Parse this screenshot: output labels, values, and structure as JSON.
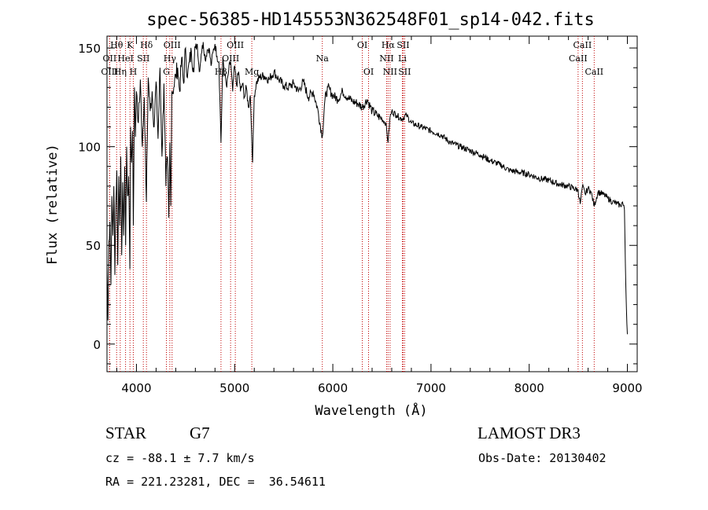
{
  "chart_data": {
    "type": "line",
    "title": "spec-56385-HD145553N362548F01_sp14-042.fits",
    "xlabel": "Wavelength (Å)",
    "ylabel": "Flux (relative)",
    "xlim": [
      3700,
      9100
    ],
    "ylim": [
      -14,
      156
    ],
    "xticks": [
      4000,
      5000,
      6000,
      7000,
      8000,
      9000
    ],
    "yticks": [
      0,
      50,
      100,
      150
    ],
    "series": [
      {
        "name": "flux",
        "x": [
          3700,
          3710,
          3720,
          3730,
          3740,
          3750,
          3760,
          3770,
          3780,
          3790,
          3800,
          3810,
          3820,
          3830,
          3840,
          3850,
          3860,
          3870,
          3880,
          3890,
          3900,
          3910,
          3920,
          3933,
          3940,
          3950,
          3960,
          3968,
          3980,
          3990,
          4000,
          4020,
          4040,
          4060,
          4080,
          4101,
          4120,
          4140,
          4160,
          4180,
          4200,
          4220,
          4240,
          4260,
          4280,
          4300,
          4315,
          4330,
          4340,
          4350,
          4360,
          4380,
          4400,
          4420,
          4440,
          4460,
          4480,
          4500,
          4520,
          4540,
          4560,
          4580,
          4600,
          4620,
          4640,
          4660,
          4680,
          4700,
          4720,
          4740,
          4760,
          4780,
          4800,
          4820,
          4840,
          4861,
          4880,
          4900,
          4920,
          4940,
          4960,
          4980,
          5000,
          5020,
          5040,
          5060,
          5080,
          5100,
          5120,
          5140,
          5160,
          5172,
          5183,
          5200,
          5220,
          5250,
          5300,
          5350,
          5400,
          5450,
          5500,
          5550,
          5600,
          5650,
          5700,
          5750,
          5800,
          5850,
          5893,
          5920,
          5950,
          6000,
          6050,
          6100,
          6150,
          6200,
          6250,
          6300,
          6350,
          6400,
          6450,
          6500,
          6540,
          6563,
          6580,
          6600,
          6650,
          6700,
          6750,
          6800,
          6900,
          7000,
          7100,
          7200,
          7300,
          7400,
          7500,
          7600,
          7700,
          7800,
          7900,
          8000,
          8100,
          8200,
          8300,
          8400,
          8498,
          8520,
          8542,
          8570,
          8600,
          8630,
          8662,
          8700,
          8750,
          8800,
          8850,
          8900,
          8930,
          8950,
          8970,
          8980,
          8990,
          9000
        ],
        "values": [
          40,
          12,
          52,
          62,
          30,
          75,
          55,
          80,
          35,
          70,
          88,
          40,
          85,
          60,
          95,
          45,
          82,
          55,
          90,
          50,
          100,
          75,
          85,
          38,
          110,
          92,
          108,
          60,
          130,
          105,
          128,
          112,
          134,
          100,
          125,
          72,
          135,
          118,
          128,
          110,
          133,
          104,
          140,
          95,
          132,
          80,
          95,
          64,
          102,
          70,
          128,
          130,
          136,
          140,
          128,
          145,
          132,
          150,
          135,
          143,
          148,
          140,
          150,
          152,
          138,
          147,
          153,
          144,
          149,
          150,
          141,
          148,
          152,
          146,
          143,
          102,
          145,
          136,
          130,
          139,
          143,
          128,
          141,
          131,
          138,
          128,
          132,
          125,
          130,
          120,
          126,
          108,
          92,
          126,
          132,
          135,
          136,
          134,
          138,
          134,
          131,
          130,
          132,
          128,
          133,
          125,
          128,
          118,
          105,
          124,
          130,
          126,
          124,
          128,
          125,
          123,
          122,
          120,
          124,
          118,
          116,
          114,
          112,
          102,
          114,
          118,
          116,
          114,
          116,
          112,
          110,
          108,
          106,
          102,
          100,
          98,
          96,
          93,
          91,
          88,
          87,
          86,
          84,
          83,
          81,
          80,
          78,
          71,
          80,
          76,
          79,
          77,
          70,
          77,
          76,
          74,
          72,
          71,
          70,
          72,
          68,
          40,
          18,
          5
        ]
      }
    ],
    "lines": [
      {
        "name": "Hθ",
        "wave": 3798,
        "row": 1
      },
      {
        "name": "OII",
        "wave": 3727,
        "row": 2
      },
      {
        "name": "OIII",
        "wave": 3727,
        "row": 3
      },
      {
        "name": "Hη",
        "wave": 3835,
        "row": 3
      },
      {
        "name": "HeI",
        "wave": 3889,
        "row": 2
      },
      {
        "name": "K",
        "wave": 3934,
        "row": 1
      },
      {
        "name": "H",
        "wave": 3968,
        "row": 3
      },
      {
        "name": "SII",
        "wave": 4070,
        "row": 2
      },
      {
        "name": "Hδ",
        "wave": 4102,
        "row": 1
      },
      {
        "name": "OIII",
        "wave": 4363,
        "row": 1
      },
      {
        "name": "Hγ",
        "wave": 4340,
        "row": 2
      },
      {
        "name": "G",
        "wave": 4305,
        "row": 3
      },
      {
        "name": "OIII",
        "wave": 5007,
        "row": 1
      },
      {
        "name": "OIII",
        "wave": 4959,
        "row": 2
      },
      {
        "name": "Hβ",
        "wave": 4861,
        "row": 3
      },
      {
        "name": "Mg",
        "wave": 5175,
        "row": 3
      },
      {
        "name": "Na",
        "wave": 5893,
        "row": 2
      },
      {
        "name": "OI",
        "wave": 6300,
        "row": 1
      },
      {
        "name": "OI",
        "wave": 6364,
        "row": 3
      },
      {
        "name": "Hα",
        "wave": 6563,
        "row": 1
      },
      {
        "name": "NII",
        "wave": 6548,
        "row": 2
      },
      {
        "name": "NII",
        "wave": 6583,
        "row": 3
      },
      {
        "name": "SII",
        "wave": 6716,
        "row": 1
      },
      {
        "name": "Li",
        "wave": 6708,
        "row": 2
      },
      {
        "name": "SII",
        "wave": 6731,
        "row": 3
      },
      {
        "name": "CaII",
        "wave": 8542,
        "row": 1
      },
      {
        "name": "CaII",
        "wave": 8498,
        "row": 2
      },
      {
        "name": "CaII",
        "wave": 8662,
        "row": 3
      }
    ],
    "line_color": "#c00000"
  },
  "info": {
    "object_class": "STAR",
    "subclass": "G7",
    "survey": "LAMOST DR3",
    "redshift": "cz = -88.1 ± 7.7 km/s",
    "obs_date": "Obs-Date: 20130402",
    "coords": "RA = 221.23281, DEC =  36.54611"
  }
}
